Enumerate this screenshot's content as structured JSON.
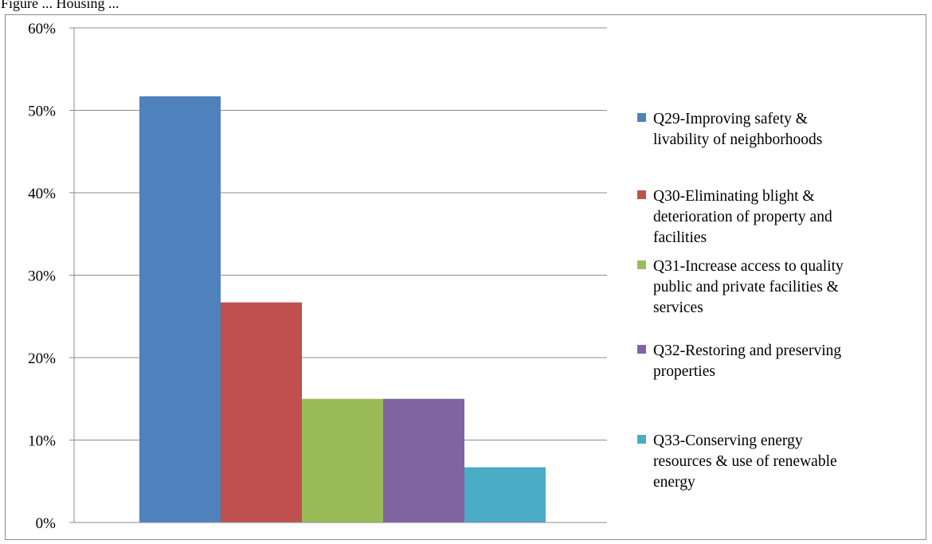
{
  "top_clip_text": "Figure ... Housing ...",
  "chart_data": {
    "type": "bar",
    "categories": [
      "Q29-Improving safety & livability of neighborhoods",
      "Q30-Eliminating blight & deterioration of property and facilities",
      "Q31-Increase access to quality public and private facilities & services",
      "Q32-Restoring and preserving properties",
      "Q33-Conserving energy resources & use of renewable energy"
    ],
    "values": [
      51.7,
      26.7,
      15.0,
      15.0,
      6.7
    ],
    "ylim": [
      0,
      60
    ],
    "yticks": [
      "0%",
      "10%",
      "20%",
      "30%",
      "40%",
      "50%",
      "60%"
    ],
    "grid": true,
    "legend_position": "right",
    "colors": [
      "#4f81bd",
      "#c0504d",
      "#9bbb59",
      "#8064a2",
      "#4bacc6"
    ],
    "legend": [
      {
        "lines": [
          "Q29-Improving safety &",
          "livability of neighborhoods"
        ]
      },
      {
        "lines": [
          "Q30-Eliminating blight &",
          "deterioration of property and",
          "facilities"
        ]
      },
      {
        "lines": [
          "Q31-Increase access to quality",
          "public and private facilities &",
          "services"
        ]
      },
      {
        "lines": [
          "Q32-Restoring and preserving",
          "properties"
        ]
      },
      {
        "lines": [
          "Q33-Conserving energy",
          "resources & use of renewable",
          "energy"
        ]
      }
    ]
  }
}
